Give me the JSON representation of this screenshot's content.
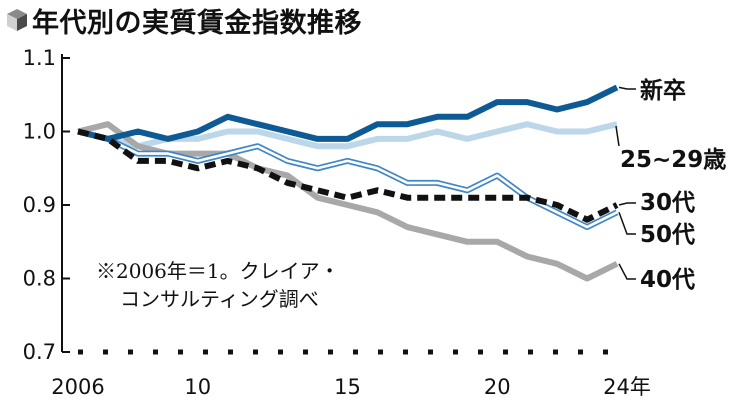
{
  "title": "年代別の実質賃金指数推移",
  "note": [
    "※2006年＝1。クレイア・",
    "コンサルティング調べ"
  ],
  "colors": {
    "shinsotsu": "#0d5a94",
    "age25_29": "#bcd6ea",
    "age30s": "#111111",
    "age40s": "#a8a8a8",
    "age50s": "#3f86c6"
  },
  "chart_data": {
    "type": "line",
    "title": "年代別の実質賃金指数推移",
    "x": [
      2006,
      2007,
      2008,
      2009,
      2010,
      2011,
      2012,
      2013,
      2014,
      2015,
      2016,
      2017,
      2018,
      2019,
      2020,
      2021,
      2022,
      2023,
      2024
    ],
    "x_tick_values": [
      2006,
      2010,
      2015,
      2020,
      2024
    ],
    "x_tick_labels": [
      "2006",
      "10",
      "15",
      "20",
      "24年"
    ],
    "y_tick_values": [
      0.7,
      0.8,
      0.9,
      1.0,
      1.1
    ],
    "y_tick_labels": [
      "0.7",
      "0.8",
      "0.9",
      "1.0",
      "1.1"
    ],
    "ylim": [
      0.7,
      1.1
    ],
    "xlim": [
      2006,
      2024
    ],
    "xlabel": "",
    "ylabel": "",
    "grid": false,
    "series": [
      {
        "key": "shinsotsu",
        "name": "新卒",
        "style": "solid-thick",
        "values": [
          1.0,
          0.99,
          1.0,
          0.99,
          1.0,
          1.02,
          1.01,
          1.0,
          0.99,
          0.99,
          1.01,
          1.01,
          1.02,
          1.02,
          1.04,
          1.04,
          1.03,
          1.04,
          1.06
        ]
      },
      {
        "key": "age25_29",
        "name": "25~29歳",
        "style": "solid-light",
        "values": [
          1.0,
          0.99,
          0.98,
          0.99,
          0.99,
          1.0,
          1.0,
          0.99,
          0.98,
          0.98,
          0.99,
          0.99,
          1.0,
          0.99,
          1.0,
          1.01,
          1.0,
          1.0,
          1.01
        ]
      },
      {
        "key": "age30s",
        "name": "30代",
        "style": "dashed",
        "values": [
          1.0,
          0.99,
          0.96,
          0.96,
          0.95,
          0.96,
          0.95,
          0.93,
          0.92,
          0.91,
          0.92,
          0.91,
          0.91,
          0.91,
          0.91,
          0.91,
          0.9,
          0.88,
          0.9
        ]
      },
      {
        "key": "age40s",
        "name": "40代",
        "style": "solid-gray",
        "values": [
          1.0,
          1.01,
          0.98,
          0.97,
          0.97,
          0.97,
          0.95,
          0.94,
          0.91,
          0.9,
          0.89,
          0.87,
          0.86,
          0.85,
          0.85,
          0.83,
          0.82,
          0.8,
          0.82
        ]
      },
      {
        "key": "age50s",
        "name": "50代",
        "style": "double",
        "values": [
          1.0,
          0.99,
          0.97,
          0.97,
          0.96,
          0.97,
          0.98,
          0.96,
          0.95,
          0.96,
          0.95,
          0.93,
          0.93,
          0.92,
          0.94,
          0.91,
          0.89,
          0.87,
          0.89
        ]
      }
    ]
  }
}
